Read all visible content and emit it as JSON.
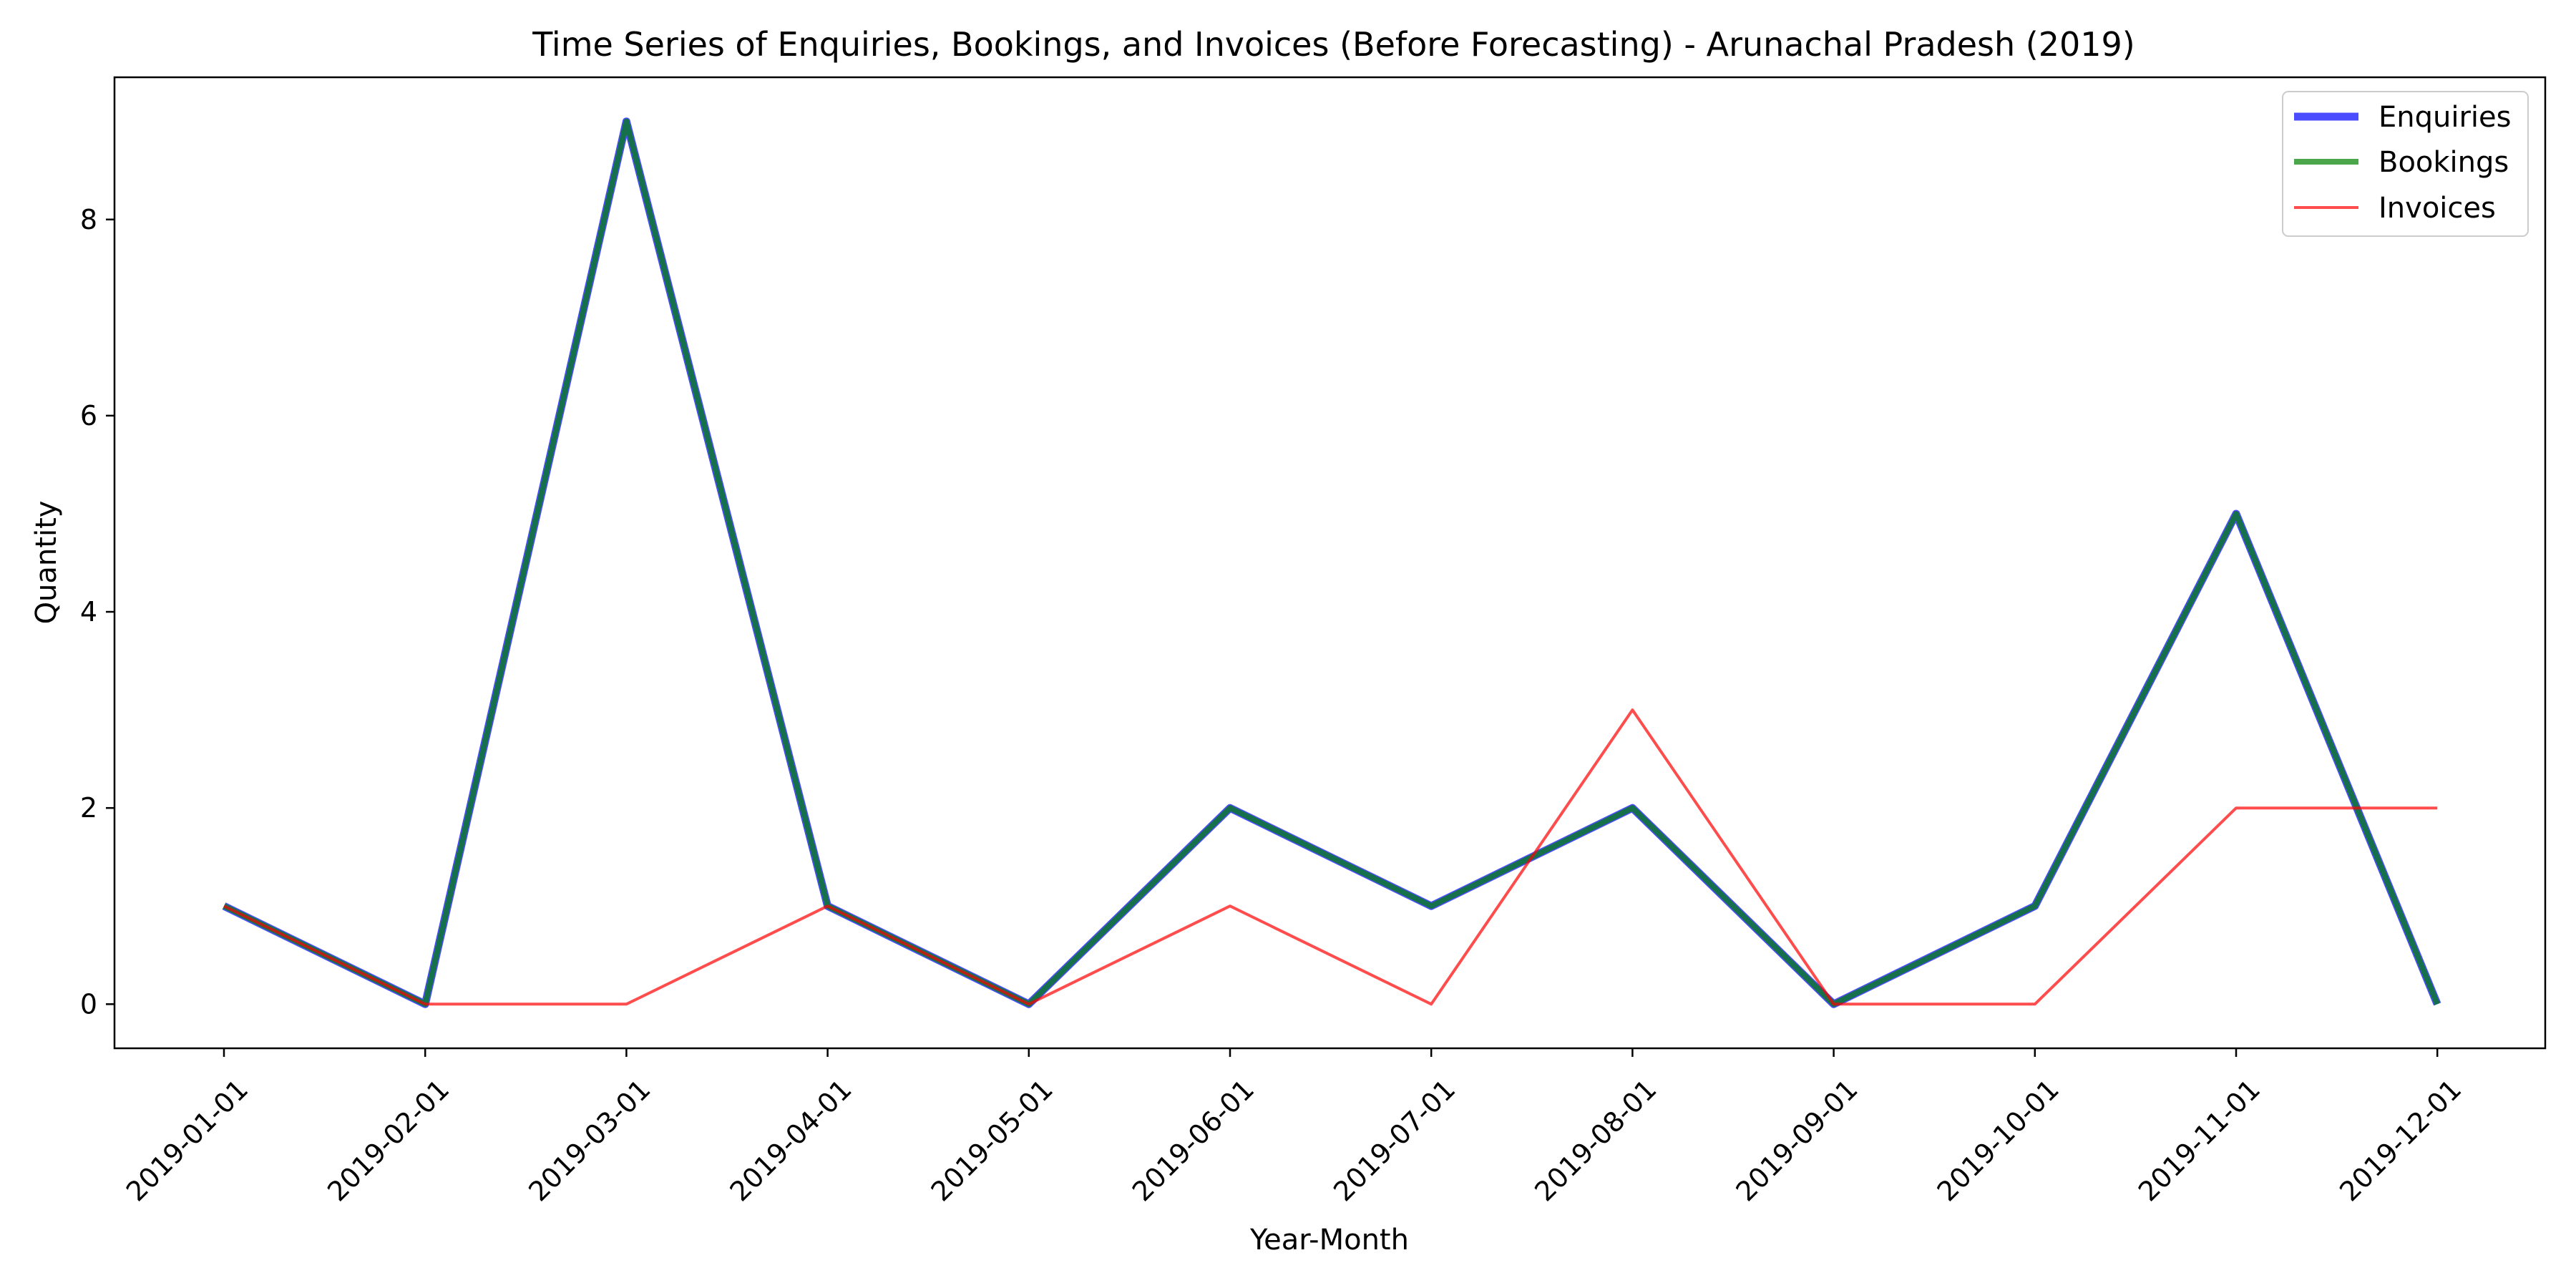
{
  "chart_data": {
    "type": "line",
    "title": "Time Series of Enquiries, Bookings, and Invoices (Before Forecasting) - Arunachal Pradesh (2019)",
    "xlabel": "Year-Month",
    "ylabel": "Quantity",
    "x": [
      "2019-01-01",
      "2019-02-01",
      "2019-03-01",
      "2019-04-01",
      "2019-05-01",
      "2019-06-01",
      "2019-07-01",
      "2019-08-01",
      "2019-09-01",
      "2019-10-01",
      "2019-11-01",
      "2019-12-01"
    ],
    "yticks": [
      0,
      2,
      4,
      6,
      8
    ],
    "ylim": [
      -0.45,
      9.45
    ],
    "grid": false,
    "legend_position": "top-right",
    "series": [
      {
        "name": "Enquiries",
        "values": [
          1,
          0,
          9,
          1,
          0,
          2,
          1,
          2,
          0,
          1,
          5,
          0
        ],
        "color": "#0000ff",
        "opacity": 0.7
      },
      {
        "name": "Bookings",
        "values": [
          1,
          0,
          9,
          1,
          0,
          2,
          1,
          2,
          0,
          1,
          5,
          0
        ],
        "color": "#008000",
        "opacity": 0.7
      },
      {
        "name": "Invoices",
        "values": [
          1,
          0,
          0,
          1,
          0,
          1,
          0,
          3,
          0,
          0,
          2,
          2
        ],
        "color": "#ff0000",
        "opacity": 0.7
      }
    ]
  }
}
